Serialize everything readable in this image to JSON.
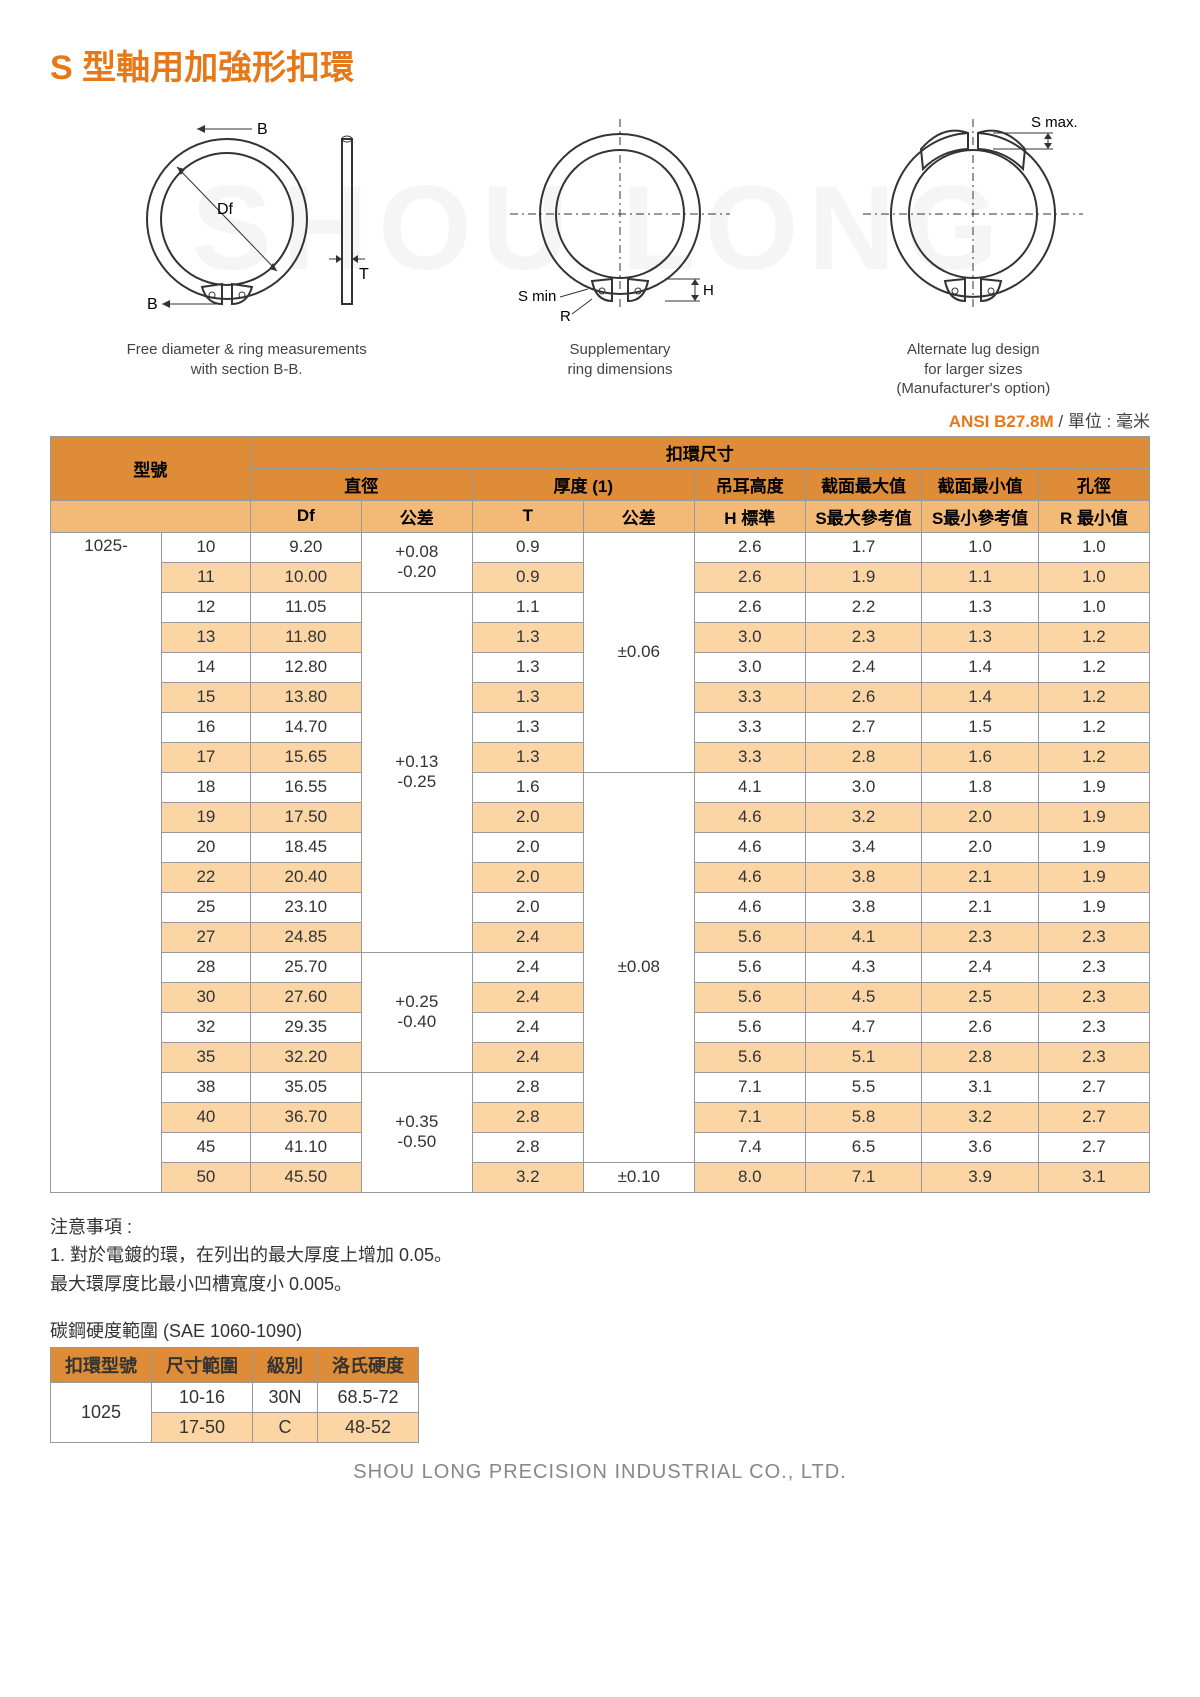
{
  "title": "S 型軸用加強形扣環",
  "watermark": "SHOU LONG",
  "diagrams": {
    "d1": {
      "labels": {
        "B": "B",
        "Df": "Df",
        "T": "T"
      },
      "caption": "Free diameter & ring measurements\nwith section B-B."
    },
    "d2": {
      "labels": {
        "Smin": "S min",
        "R": "R",
        "H": "H"
      },
      "caption": "Supplementary\nring dimensions"
    },
    "d3": {
      "labels": {
        "Smax": "S max."
      },
      "caption": "Alternate lug design\nfor larger sizes\n(Manufacturer's option)"
    }
  },
  "spec_standard": "ANSI B27.8M",
  "spec_unit": " / 單位 : 毫米",
  "headers": {
    "model": "型號",
    "ring_dims": "扣環尺寸",
    "diameter": "直徑",
    "thickness": "厚度 (1)",
    "lug_height": "吊耳高度",
    "sec_max": "截面最大值",
    "sec_min": "截面最小值",
    "bore": "孔徑",
    "Df": "Df",
    "tol_d": "公差",
    "T": "T",
    "tol_t": "公差",
    "H": "H 標準",
    "Smax": "S最大參考值",
    "Smin": "S最小參考值",
    "Rmin": "R 最小值"
  },
  "series": "1025-",
  "tol_groups_d": [
    {
      "text": "+0.08\n-0.20",
      "span": 2
    },
    {
      "text": "+0.13\n-0.25",
      "span": 12
    },
    {
      "text": "+0.25\n-0.40",
      "span": 4
    },
    {
      "text": "+0.35\n-0.50",
      "span": 4
    }
  ],
  "tol_groups_t": [
    {
      "text": "±0.06",
      "span": 8
    },
    {
      "text": "±0.08",
      "span": 13
    },
    {
      "text": "±0.10",
      "span": 1
    }
  ],
  "rows": [
    {
      "size": "10",
      "Df": "9.20",
      "T": "0.9",
      "H": "2.6",
      "Smax": "1.7",
      "Smin": "1.0",
      "R": "1.0"
    },
    {
      "size": "11",
      "Df": "10.00",
      "T": "0.9",
      "H": "2.6",
      "Smax": "1.9",
      "Smin": "1.1",
      "R": "1.0"
    },
    {
      "size": "12",
      "Df": "11.05",
      "T": "1.1",
      "H": "2.6",
      "Smax": "2.2",
      "Smin": "1.3",
      "R": "1.0"
    },
    {
      "size": "13",
      "Df": "11.80",
      "T": "1.3",
      "H": "3.0",
      "Smax": "2.3",
      "Smin": "1.3",
      "R": "1.2"
    },
    {
      "size": "14",
      "Df": "12.80",
      "T": "1.3",
      "H": "3.0",
      "Smax": "2.4",
      "Smin": "1.4",
      "R": "1.2"
    },
    {
      "size": "15",
      "Df": "13.80",
      "T": "1.3",
      "H": "3.3",
      "Smax": "2.6",
      "Smin": "1.4",
      "R": "1.2"
    },
    {
      "size": "16",
      "Df": "14.70",
      "T": "1.3",
      "H": "3.3",
      "Smax": "2.7",
      "Smin": "1.5",
      "R": "1.2"
    },
    {
      "size": "17",
      "Df": "15.65",
      "T": "1.3",
      "H": "3.3",
      "Smax": "2.8",
      "Smin": "1.6",
      "R": "1.2"
    },
    {
      "size": "18",
      "Df": "16.55",
      "T": "1.6",
      "H": "4.1",
      "Smax": "3.0",
      "Smin": "1.8",
      "R": "1.9"
    },
    {
      "size": "19",
      "Df": "17.50",
      "T": "2.0",
      "H": "4.6",
      "Smax": "3.2",
      "Smin": "2.0",
      "R": "1.9"
    },
    {
      "size": "20",
      "Df": "18.45",
      "T": "2.0",
      "H": "4.6",
      "Smax": "3.4",
      "Smin": "2.0",
      "R": "1.9"
    },
    {
      "size": "22",
      "Df": "20.40",
      "T": "2.0",
      "H": "4.6",
      "Smax": "3.8",
      "Smin": "2.1",
      "R": "1.9"
    },
    {
      "size": "25",
      "Df": "23.10",
      "T": "2.0",
      "H": "4.6",
      "Smax": "3.8",
      "Smin": "2.1",
      "R": "1.9"
    },
    {
      "size": "27",
      "Df": "24.85",
      "T": "2.4",
      "H": "5.6",
      "Smax": "4.1",
      "Smin": "2.3",
      "R": "2.3"
    },
    {
      "size": "28",
      "Df": "25.70",
      "T": "2.4",
      "H": "5.6",
      "Smax": "4.3",
      "Smin": "2.4",
      "R": "2.3"
    },
    {
      "size": "30",
      "Df": "27.60",
      "T": "2.4",
      "H": "5.6",
      "Smax": "4.5",
      "Smin": "2.5",
      "R": "2.3"
    },
    {
      "size": "32",
      "Df": "29.35",
      "T": "2.4",
      "H": "5.6",
      "Smax": "4.7",
      "Smin": "2.6",
      "R": "2.3"
    },
    {
      "size": "35",
      "Df": "32.20",
      "T": "2.4",
      "H": "5.6",
      "Smax": "5.1",
      "Smin": "2.8",
      "R": "2.3"
    },
    {
      "size": "38",
      "Df": "35.05",
      "T": "2.8",
      "H": "7.1",
      "Smax": "5.5",
      "Smin": "3.1",
      "R": "2.7"
    },
    {
      "size": "40",
      "Df": "36.70",
      "T": "2.8",
      "H": "7.1",
      "Smax": "5.8",
      "Smin": "3.2",
      "R": "2.7"
    },
    {
      "size": "45",
      "Df": "41.10",
      "T": "2.8",
      "H": "7.4",
      "Smax": "6.5",
      "Smin": "3.6",
      "R": "2.7"
    },
    {
      "size": "50",
      "Df": "45.50",
      "T": "3.2",
      "H": "8.0",
      "Smax": "7.1",
      "Smin": "3.9",
      "R": "3.1"
    }
  ],
  "notes": {
    "heading": "注意事項 :",
    "line1": "1. 對於電鍍的環，在列出的最大厚度上增加 0.05。",
    "line2": "最大環厚度比最小凹槽寬度小 0.005。"
  },
  "hardness": {
    "title": "碳鋼硬度範圍 (SAE 1060-1090)",
    "headers": [
      "扣環型號",
      "尺寸範圍",
      "級別",
      "洛氏硬度"
    ],
    "rows": [
      [
        "1025",
        "10-16",
        "30N",
        "68.5-72"
      ],
      [
        "",
        "17-50",
        "C",
        "48-52"
      ]
    ]
  },
  "footer": "SHOU LONG PRECISION INDUSTRIAL CO., LTD."
}
